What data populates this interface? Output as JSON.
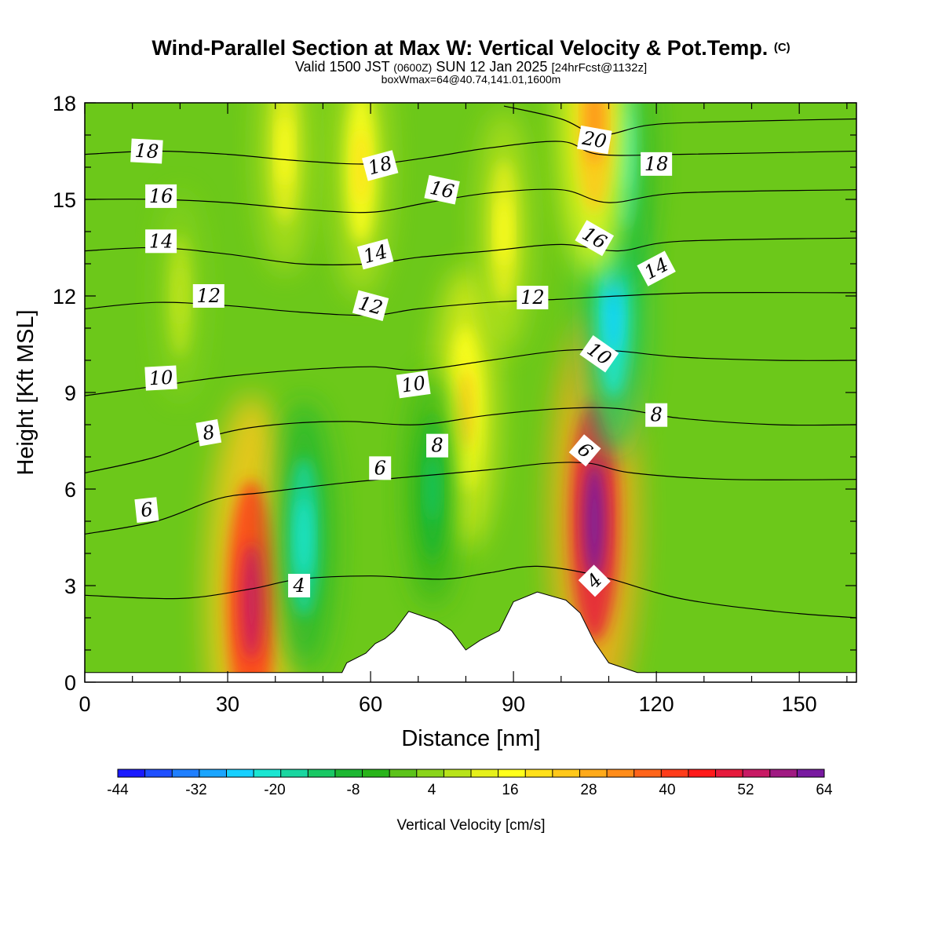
{
  "chart_data": {
    "type": "heatmap",
    "title": "Wind-Parallel Section at Max W: Vertical Velocity & Pot.Temp.",
    "title_mark": "(C)",
    "subtitle_parts": [
      "Valid 1500 JST",
      "(0600Z)",
      "SUN 12 Jan 2025",
      "[24hrFcst@1132z]"
    ],
    "subtitle2": "boxWmax=64@40.74,141.01,1600m",
    "xlabel": "Distance [nm]",
    "ylabel": "Height [Kft MSL]",
    "xlim": [
      0,
      162
    ],
    "ylim": [
      0,
      18
    ],
    "x_ticks": [
      "0",
      "30",
      "60",
      "90",
      "120",
      "150"
    ],
    "y_ticks": [
      "0",
      "3",
      "6",
      "9",
      "12",
      "15",
      "18"
    ],
    "colorbar": {
      "label": "Vertical Velocity [cm/s]",
      "range": [
        -44,
        64
      ],
      "tick_labels": [
        "-44",
        "-32",
        "-20",
        "-8",
        "4",
        "16",
        "28",
        "40",
        "52",
        "64"
      ],
      "colors": [
        "#1a1aff",
        "#1f4fff",
        "#1f7fff",
        "#1aa5ff",
        "#17d0ff",
        "#1ae6d2",
        "#19d6a0",
        "#19c864",
        "#1db732",
        "#29b41a",
        "#5cc31a",
        "#8ad41a",
        "#b8e31a",
        "#e6f01a",
        "#ffff1a",
        "#ffe01a",
        "#ffc81a",
        "#ffaa1a",
        "#ff8c1a",
        "#ff641a",
        "#ff3c1a",
        "#ff1a1a",
        "#e61a3c",
        "#c81a64",
        "#a01a82",
        "#781aa0"
      ]
    },
    "terrain_profile": [
      [
        0,
        0.3
      ],
      [
        54,
        0.3
      ],
      [
        55,
        0.6
      ],
      [
        59,
        0.9
      ],
      [
        61,
        1.2
      ],
      [
        63,
        1.35
      ],
      [
        65,
        1.6
      ],
      [
        68,
        2.2
      ],
      [
        74,
        1.9
      ],
      [
        77,
        1.6
      ],
      [
        80,
        1.0
      ],
      [
        83,
        1.3
      ],
      [
        87,
        1.6
      ],
      [
        90,
        2.5
      ],
      [
        95,
        2.8
      ],
      [
        101,
        2.55
      ],
      [
        104,
        2.15
      ],
      [
        107,
        1.25
      ],
      [
        110,
        0.6
      ],
      [
        116,
        0.3
      ],
      [
        162,
        0.3
      ]
    ],
    "velocity_features": [
      {
        "x": 35,
        "y": 2.5,
        "w": 55
      },
      {
        "x": 46,
        "y": 4.5,
        "w": -22
      },
      {
        "x": 80,
        "y": 8.5,
        "w": 24
      },
      {
        "x": 73,
        "y": 6.0,
        "w": -14
      },
      {
        "x": 107,
        "y": 5.0,
        "w": 64
      },
      {
        "x": 111,
        "y": 11.5,
        "w": -26
      },
      {
        "x": 113,
        "y": 16.5,
        "w": -22
      },
      {
        "x": 107,
        "y": 17.5,
        "w": 32
      },
      {
        "x": 88,
        "y": 14.0,
        "w": 16
      },
      {
        "x": 58,
        "y": 16.0,
        "w": 20
      },
      {
        "x": 42,
        "y": 16.5,
        "w": 16
      },
      {
        "x": 20,
        "y": 12.0,
        "w": 8
      }
    ],
    "theta_contours": [
      {
        "level": 4,
        "points": [
          [
            0,
            2.7
          ],
          [
            20,
            2.6
          ],
          [
            35,
            2.9
          ],
          [
            45,
            3.2
          ],
          [
            60,
            3.3
          ],
          [
            75,
            3.2
          ],
          [
            85,
            3.4
          ],
          [
            95,
            3.6
          ],
          [
            108,
            3.3
          ],
          [
            125,
            2.6
          ],
          [
            145,
            2.2
          ],
          [
            162,
            2.0
          ]
        ]
      },
      {
        "level": 6,
        "points": [
          [
            0,
            4.6
          ],
          [
            15,
            5.0
          ],
          [
            28,
            5.7
          ],
          [
            38,
            5.9
          ],
          [
            55,
            6.2
          ],
          [
            70,
            6.4
          ],
          [
            85,
            6.6
          ],
          [
            97,
            6.8
          ],
          [
            106,
            6.8
          ],
          [
            115,
            6.5
          ],
          [
            135,
            6.3
          ],
          [
            162,
            6.3
          ]
        ]
      },
      {
        "level": 8,
        "points": [
          [
            0,
            6.5
          ],
          [
            15,
            7.0
          ],
          [
            28,
            7.7
          ],
          [
            40,
            8.0
          ],
          [
            55,
            8.1
          ],
          [
            70,
            8.0
          ],
          [
            85,
            8.3
          ],
          [
            100,
            8.5
          ],
          [
            112,
            8.5
          ],
          [
            125,
            8.2
          ],
          [
            145,
            8.0
          ],
          [
            162,
            8.0
          ]
        ]
      },
      {
        "level": 10,
        "points": [
          [
            0,
            8.9
          ],
          [
            15,
            9.2
          ],
          [
            30,
            9.5
          ],
          [
            45,
            9.7
          ],
          [
            60,
            9.8
          ],
          [
            70,
            9.7
          ],
          [
            85,
            10.0
          ],
          [
            100,
            10.3
          ],
          [
            111,
            10.3
          ],
          [
            125,
            10.1
          ],
          [
            145,
            10.0
          ],
          [
            162,
            10.0
          ]
        ]
      },
      {
        "level": 12,
        "points": [
          [
            0,
            11.6
          ],
          [
            15,
            11.8
          ],
          [
            30,
            11.7
          ],
          [
            45,
            11.5
          ],
          [
            60,
            11.4
          ],
          [
            70,
            11.6
          ],
          [
            85,
            11.8
          ],
          [
            100,
            11.9
          ],
          [
            112,
            12.0
          ],
          [
            130,
            12.1
          ],
          [
            162,
            12.1
          ]
        ]
      },
      {
        "level": 14,
        "points": [
          [
            0,
            13.4
          ],
          [
            15,
            13.5
          ],
          [
            30,
            13.3
          ],
          [
            45,
            13.0
          ],
          [
            60,
            13.0
          ],
          [
            70,
            13.2
          ],
          [
            85,
            13.4
          ],
          [
            100,
            13.6
          ],
          [
            112,
            13.4
          ],
          [
            125,
            13.7
          ],
          [
            162,
            13.8
          ]
        ]
      },
      {
        "level": 16,
        "points": [
          [
            0,
            15.0
          ],
          [
            15,
            15.0
          ],
          [
            30,
            14.9
          ],
          [
            45,
            14.7
          ],
          [
            60,
            14.6
          ],
          [
            72,
            14.9
          ],
          [
            85,
            15.2
          ],
          [
            100,
            15.3
          ],
          [
            110,
            14.9
          ],
          [
            125,
            15.2
          ],
          [
            162,
            15.3
          ]
        ]
      },
      {
        "level": 18,
        "points": [
          [
            0,
            16.4
          ],
          [
            15,
            16.5
          ],
          [
            30,
            16.4
          ],
          [
            45,
            16.2
          ],
          [
            60,
            16.1
          ],
          [
            72,
            16.3
          ],
          [
            85,
            16.6
          ],
          [
            100,
            16.8
          ],
          [
            108,
            16.4
          ],
          [
            125,
            16.4
          ],
          [
            162,
            16.5
          ]
        ]
      },
      {
        "level": 20,
        "points": [
          [
            88,
            17.9
          ],
          [
            100,
            17.5
          ],
          [
            108,
            17.0
          ],
          [
            118,
            17.3
          ],
          [
            130,
            17.4
          ],
          [
            162,
            17.5
          ]
        ]
      }
    ],
    "contour_labels": [
      {
        "text": "18",
        "x": 13,
        "y": 16.5,
        "angle": 3
      },
      {
        "text": "16",
        "x": 16,
        "y": 15.1,
        "angle": 0
      },
      {
        "text": "14",
        "x": 16,
        "y": 13.7,
        "angle": 0
      },
      {
        "text": "12",
        "x": 26,
        "y": 12.0,
        "angle": 0
      },
      {
        "text": "10",
        "x": 16,
        "y": 9.45,
        "angle": -3
      },
      {
        "text": "8",
        "x": 26,
        "y": 7.75,
        "angle": -10
      },
      {
        "text": "6",
        "x": 13,
        "y": 5.35,
        "angle": -6
      },
      {
        "text": "4",
        "x": 45,
        "y": 3.0,
        "angle": 0
      },
      {
        "text": "18",
        "x": 62,
        "y": 16.05,
        "angle": -15
      },
      {
        "text": "16",
        "x": 75,
        "y": 15.3,
        "angle": 12
      },
      {
        "text": "14",
        "x": 61,
        "y": 13.3,
        "angle": -15
      },
      {
        "text": "12",
        "x": 60,
        "y": 11.7,
        "angle": 15
      },
      {
        "text": "10",
        "x": 69,
        "y": 9.25,
        "angle": -8
      },
      {
        "text": "8",
        "x": 74,
        "y": 7.35,
        "angle": 0
      },
      {
        "text": "6",
        "x": 62,
        "y": 6.65,
        "angle": 0
      },
      {
        "text": "12",
        "x": 94,
        "y": 11.95,
        "angle": 0
      },
      {
        "text": "20",
        "x": 107,
        "y": 16.85,
        "angle": 10
      },
      {
        "text": "18",
        "x": 120,
        "y": 16.1,
        "angle": 0
      },
      {
        "text": "16",
        "x": 107,
        "y": 13.8,
        "angle": 30
      },
      {
        "text": "14",
        "x": 120,
        "y": 12.85,
        "angle": -28
      },
      {
        "text": "10",
        "x": 108,
        "y": 10.2,
        "angle": 35
      },
      {
        "text": "8",
        "x": 120,
        "y": 8.3,
        "angle": 0
      },
      {
        "text": "6",
        "x": 105,
        "y": 7.2,
        "angle": 40
      },
      {
        "text": "4",
        "x": 107,
        "y": 3.15,
        "angle": -45
      }
    ]
  }
}
